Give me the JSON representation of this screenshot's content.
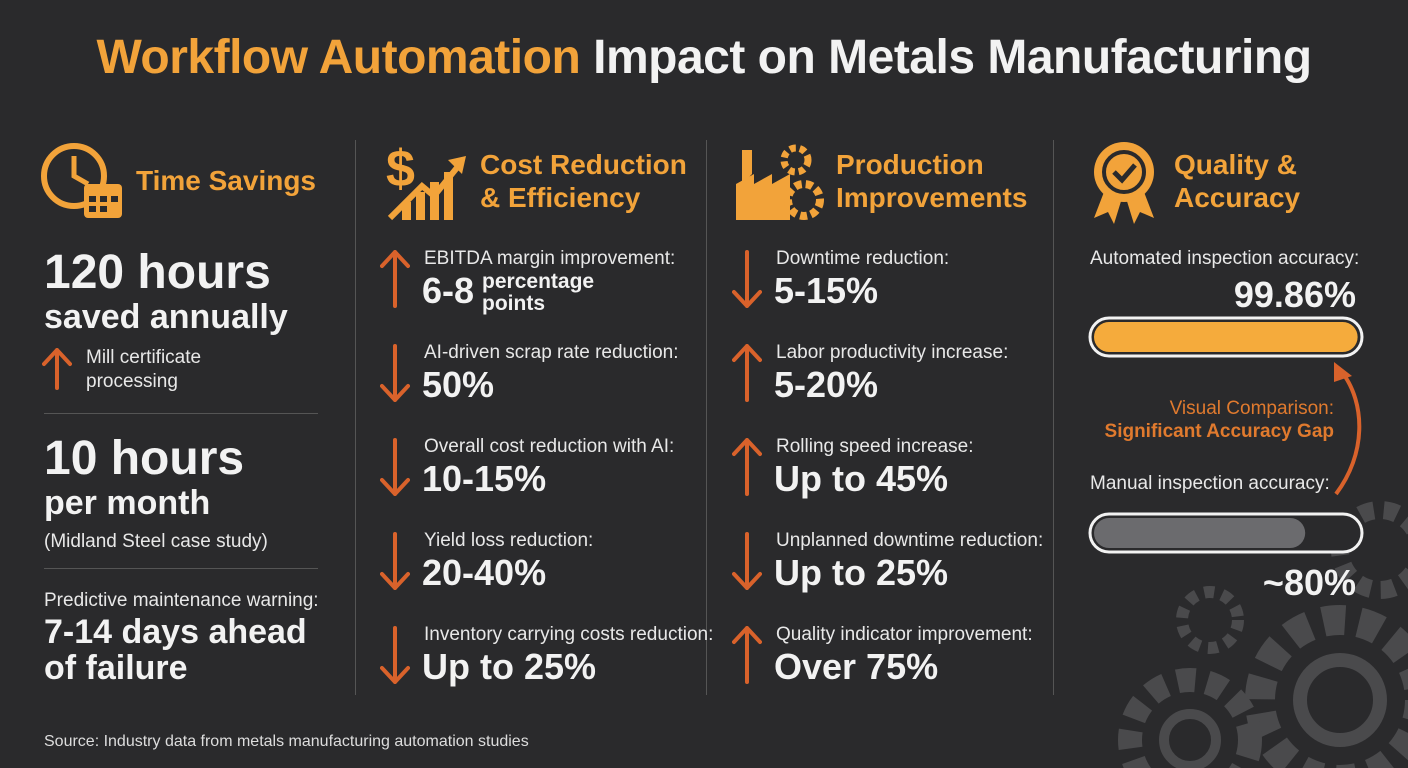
{
  "title": {
    "highlight": "Workflow Automation",
    "rest": "Impact on Metals Manufacturing"
  },
  "time": {
    "heading": [
      "Time Savings"
    ],
    "block1": {
      "big": "120 hours",
      "sub": "saved annually",
      "direction": "up",
      "note": "Mill certificate processing"
    },
    "block2": {
      "big": "10 hours",
      "sub": "per month",
      "note": "(Midland Steel case study)"
    },
    "block3": {
      "label": "Predictive maintenance warning:",
      "value": "7-14 days ahead of failure"
    }
  },
  "cost": {
    "heading": [
      "Cost Reduction",
      "& Efficiency"
    ],
    "items": [
      {
        "direction": "up",
        "label": "EBITDA margin improvement:",
        "value": "6-8",
        "unit": "percentage points"
      },
      {
        "direction": "down",
        "label": "AI-driven scrap rate reduction:",
        "value": "50%"
      },
      {
        "direction": "down",
        "label": "Overall cost reduction with AI:",
        "value": "10-15%"
      },
      {
        "direction": "down",
        "label": "Yield loss reduction:",
        "value": "20-40%"
      },
      {
        "direction": "down",
        "label": "Inventory carrying costs reduction:",
        "value": "Up to 25%"
      }
    ]
  },
  "production": {
    "heading": [
      "Production",
      "Improvements"
    ],
    "items": [
      {
        "direction": "down",
        "label": "Downtime reduction:",
        "value": "5-15%"
      },
      {
        "direction": "up",
        "label": "Labor productivity increase:",
        "value": "5-20%"
      },
      {
        "direction": "up",
        "label": "Rolling speed increase:",
        "value": "Up to 45%"
      },
      {
        "direction": "down",
        "label": "Unplanned downtime reduction:",
        "value": "Up to 25%"
      },
      {
        "direction": "up",
        "label": "Quality indicator improvement:",
        "value": "Over 75%"
      }
    ]
  },
  "quality": {
    "heading": [
      "Quality &",
      "Accuracy"
    ],
    "xlim": [
      0,
      100
    ],
    "automated": {
      "label": "Automated inspection accuracy:",
      "value": 99.86,
      "value_label": "99.86%"
    },
    "comparison": {
      "line1": "Visual Comparison:",
      "line2": "Significant Accuracy Gap"
    },
    "manual": {
      "label": "Manual inspection accuracy:",
      "value": 80,
      "value_label": "~80%"
    }
  },
  "source": "Source: Industry data from metals manufacturing automation studies"
}
